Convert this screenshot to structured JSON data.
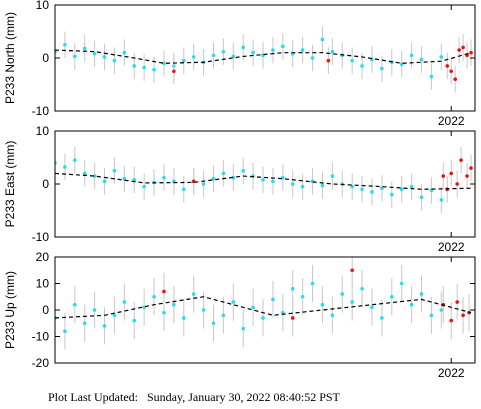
{
  "chart_data": [
    {
      "type": "scatter",
      "ylabel": "P233 North (mm)",
      "xlim": [
        2020.0,
        2022.12
      ],
      "xticks": [
        2022
      ],
      "ylim": [
        -10,
        10
      ],
      "yticks": [
        -10,
        0,
        10
      ],
      "series": [
        {
          "kind": "points",
          "color": "#22dff0",
          "error": 2.5,
          "x": [
            2020.0,
            2020.05,
            2020.1,
            2020.15,
            2020.2,
            2020.25,
            2020.3,
            2020.35,
            2020.4,
            2020.45,
            2020.5,
            2020.55,
            2020.6,
            2020.65,
            2020.7,
            2020.75,
            2020.8,
            2020.85,
            2020.9,
            2020.95,
            2021.0,
            2021.05,
            2021.1,
            2021.15,
            2021.2,
            2021.25,
            2021.3,
            2021.35,
            2021.4,
            2021.45,
            2021.5,
            2021.55,
            2021.6,
            2021.65,
            2021.7,
            2021.75,
            2021.8,
            2021.85,
            2021.9,
            2021.95
          ],
          "values": [
            1.2,
            2.5,
            0.3,
            1.8,
            0.8,
            0.2,
            -0.5,
            1.0,
            -1.5,
            -1.8,
            -2.2,
            -1.0,
            -1.5,
            -0.5,
            0.2,
            -0.8,
            0.5,
            1.2,
            0.3,
            2.0,
            1.0,
            0.5,
            1.5,
            2.2,
            0.8,
            1.5,
            0.0,
            3.5,
            1.2,
            0.5,
            -0.5,
            -1.5,
            -0.3,
            -2.0,
            -0.8,
            -1.2,
            0.5,
            -0.3,
            -3.5,
            0.2
          ]
        },
        {
          "kind": "points",
          "color": "#ee1111",
          "error": 2.5,
          "x": [
            2020.6,
            2021.38,
            2021.98,
            2022.0,
            2022.02,
            2022.04,
            2022.06,
            2022.08,
            2022.1
          ],
          "values": [
            -2.5,
            -0.5,
            -1.5,
            -2.5,
            -4.0,
            1.5,
            2.0,
            0.5,
            1.0
          ]
        },
        {
          "kind": "line",
          "color": "#000000",
          "x": [
            2020.0,
            2020.2,
            2020.4,
            2020.55,
            2020.75,
            2020.95,
            2021.15,
            2021.35,
            2021.55,
            2021.75,
            2021.95,
            2022.1
          ],
          "values": [
            1.5,
            1.2,
            0,
            -1,
            -0.8,
            0.3,
            1,
            1,
            0.2,
            -1,
            -0.6,
            1
          ]
        }
      ]
    },
    {
      "type": "scatter",
      "ylabel": "P233 East (mm)",
      "xlim": [
        2020.0,
        2022.12
      ],
      "xticks": [
        2022
      ],
      "ylim": [
        -10,
        10
      ],
      "yticks": [
        -10,
        0,
        10
      ],
      "series": [
        {
          "kind": "points",
          "color": "#22dff0",
          "error": 2.5,
          "x": [
            2020.0,
            2020.05,
            2020.1,
            2020.15,
            2020.2,
            2020.25,
            2020.3,
            2020.35,
            2020.4,
            2020.45,
            2020.5,
            2020.55,
            2020.6,
            2020.65,
            2020.7,
            2020.75,
            2020.8,
            2020.85,
            2020.9,
            2020.95,
            2021.0,
            2021.05,
            2021.1,
            2021.15,
            2021.2,
            2021.25,
            2021.3,
            2021.35,
            2021.4,
            2021.45,
            2021.5,
            2021.55,
            2021.6,
            2021.65,
            2021.7,
            2021.75,
            2021.8,
            2021.85,
            2021.9,
            2021.95
          ],
          "values": [
            4.0,
            3.2,
            4.5,
            2.0,
            1.5,
            0.5,
            2.5,
            1.0,
            0.8,
            -0.5,
            0.3,
            1.2,
            0.5,
            -1.0,
            0.5,
            0.0,
            1.0,
            2.0,
            1.2,
            2.5,
            1.5,
            0.8,
            0.5,
            1.2,
            0.0,
            -0.5,
            0.5,
            -0.3,
            1.5,
            0.0,
            -0.5,
            -1.0,
            -1.5,
            -0.8,
            -2.0,
            -1.0,
            -0.5,
            -2.5,
            -1.2,
            -3.0
          ]
        },
        {
          "kind": "points",
          "color": "#ee1111",
          "error": 2.5,
          "x": [
            2020.7,
            2021.96,
            2021.98,
            2022.0,
            2022.03,
            2022.05,
            2022.08,
            2022.1
          ],
          "values": [
            0.5,
            1.5,
            -1.0,
            2.0,
            0.0,
            4.5,
            1.5,
            3.0
          ]
        },
        {
          "kind": "line",
          "color": "#000000",
          "x": [
            2020.0,
            2020.2,
            2020.45,
            2020.7,
            2020.95,
            2021.15,
            2021.4,
            2021.65,
            2021.85,
            2022.1
          ],
          "values": [
            2,
            1.5,
            0.2,
            0.3,
            1.5,
            1,
            0,
            -0.5,
            -1,
            -0.8
          ]
        }
      ]
    },
    {
      "type": "scatter",
      "ylabel": "P233 Up (mm)",
      "xlim": [
        2020.0,
        2022.12
      ],
      "xticks": [
        2022
      ],
      "ylim": [
        -20,
        20
      ],
      "yticks": [
        -20,
        -10,
        0,
        10,
        20
      ],
      "series": [
        {
          "kind": "points",
          "color": "#22dff0",
          "error": 7,
          "x": [
            2020.0,
            2020.05,
            2020.1,
            2020.15,
            2020.2,
            2020.25,
            2020.3,
            2020.35,
            2020.4,
            2020.45,
            2020.5,
            2020.55,
            2020.6,
            2020.65,
            2020.7,
            2020.75,
            2020.8,
            2020.85,
            2020.9,
            2020.95,
            2021.0,
            2021.05,
            2021.1,
            2021.15,
            2021.2,
            2021.25,
            2021.3,
            2021.35,
            2021.4,
            2021.45,
            2021.5,
            2021.55,
            2021.6,
            2021.65,
            2021.7,
            2021.75,
            2021.8,
            2021.85,
            2021.9,
            2021.95
          ],
          "values": [
            -3,
            -8,
            2,
            -5,
            0,
            -6,
            -2,
            3,
            -4,
            1,
            5,
            -1,
            2,
            -3,
            6,
            0,
            -5,
            -2,
            3,
            -7,
            1,
            -3,
            4,
            -1,
            8,
            5,
            10,
            2,
            -2,
            6,
            3,
            8,
            1,
            -3,
            5,
            10,
            2,
            6,
            -2,
            0
          ]
        },
        {
          "kind": "points",
          "color": "#ee1111",
          "error": 7,
          "x": [
            2020.55,
            2021.2,
            2021.5,
            2021.96,
            2022.0,
            2022.03,
            2022.06,
            2022.09
          ],
          "values": [
            7,
            -3,
            15,
            2,
            -4,
            3,
            -2,
            -1
          ]
        },
        {
          "kind": "line",
          "color": "#000000",
          "x": [
            2020.0,
            2020.25,
            2020.5,
            2020.75,
            2020.95,
            2021.1,
            2021.35,
            2021.6,
            2021.85,
            2022.1
          ],
          "values": [
            -3,
            -2,
            2,
            5,
            1,
            -2,
            0,
            2,
            4,
            -1
          ]
        }
      ]
    }
  ],
  "footer": "Plot Last Updated:   Sunday, January 30, 2022 08:40:52 PST"
}
